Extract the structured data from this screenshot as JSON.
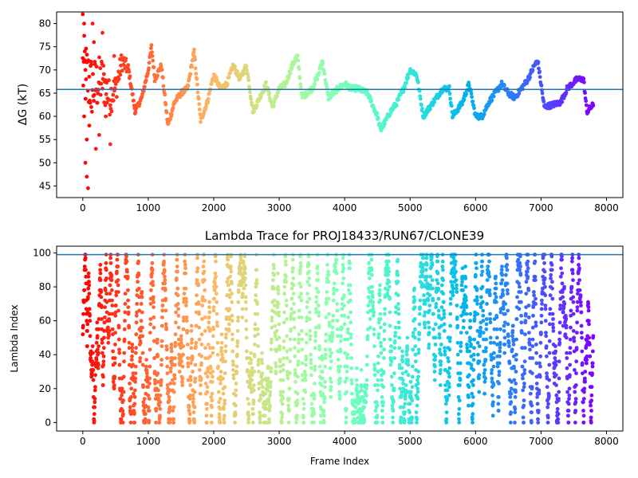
{
  "chart_data": [
    {
      "type": "scatter",
      "title": "",
      "xlabel": "",
      "ylabel": "ΔG (kT)",
      "xlim": [
        -400,
        8250
      ],
      "ylim": [
        42.5,
        82.5
      ],
      "xticks": [
        0,
        1000,
        2000,
        3000,
        4000,
        5000,
        6000,
        7000,
        8000
      ],
      "yticks": [
        45,
        50,
        55,
        60,
        65,
        70,
        75,
        80
      ],
      "color_by": "frame index (rainbow colormap, red at frame 0 to violet at frame ~7800)",
      "hline": {
        "y": 65.8,
        "color": "#1f77b4"
      },
      "trend_points": [
        [
          0,
          70
        ],
        [
          150,
          66
        ],
        [
          300,
          68
        ],
        [
          400,
          64
        ],
        [
          500,
          66
        ],
        [
          600,
          72
        ],
        [
          700,
          70
        ],
        [
          800,
          61
        ],
        [
          900,
          64
        ],
        [
          1000,
          70
        ],
        [
          1050,
          75
        ],
        [
          1100,
          68
        ],
        [
          1200,
          71
        ],
        [
          1300,
          58
        ],
        [
          1400,
          63
        ],
        [
          1500,
          65
        ],
        [
          1600,
          66
        ],
        [
          1700,
          74
        ],
        [
          1800,
          59
        ],
        [
          1900,
          63
        ],
        [
          2000,
          69
        ],
        [
          2100,
          66
        ],
        [
          2200,
          67
        ],
        [
          2300,
          71
        ],
        [
          2400,
          68
        ],
        [
          2500,
          71
        ],
        [
          2600,
          61
        ],
        [
          2700,
          64
        ],
        [
          2800,
          67
        ],
        [
          2900,
          62
        ],
        [
          3000,
          66
        ],
        [
          3100,
          67
        ],
        [
          3200,
          71
        ],
        [
          3280,
          73
        ],
        [
          3350,
          64
        ],
        [
          3500,
          66
        ],
        [
          3600,
          69
        ],
        [
          3660,
          72
        ],
        [
          3750,
          64
        ],
        [
          3900,
          66
        ],
        [
          4000,
          67
        ],
        [
          4100,
          66
        ],
        [
          4200,
          66
        ],
        [
          4350,
          65
        ],
        [
          4500,
          60
        ],
        [
          4550,
          57
        ],
        [
          4700,
          61
        ],
        [
          4800,
          63
        ],
        [
          4900,
          66
        ],
        [
          5000,
          70
        ],
        [
          5100,
          69
        ],
        [
          5200,
          60
        ],
        [
          5400,
          64
        ],
        [
          5500,
          66
        ],
        [
          5600,
          66
        ],
        [
          5650,
          60
        ],
        [
          5800,
          63
        ],
        [
          5900,
          67
        ],
        [
          6000,
          60
        ],
        [
          6100,
          60
        ],
        [
          6200,
          63
        ],
        [
          6400,
          67
        ],
        [
          6500,
          65
        ],
        [
          6600,
          64
        ],
        [
          6700,
          66
        ],
        [
          6800,
          68
        ],
        [
          6900,
          71
        ],
        [
          6950,
          72
        ],
        [
          7050,
          62
        ],
        [
          7300,
          63
        ],
        [
          7400,
          66
        ],
        [
          7550,
          68
        ],
        [
          7650,
          68
        ],
        [
          7700,
          61
        ],
        [
          7800,
          62.5
        ]
      ],
      "spread_points": [
        [
          0,
          82
        ],
        [
          20,
          80
        ],
        [
          30,
          74
        ],
        [
          40,
          70
        ],
        [
          50,
          68
        ],
        [
          20,
          60
        ],
        [
          40,
          50
        ],
        [
          60,
          47
        ],
        [
          80,
          44.5
        ],
        [
          60,
          55
        ],
        [
          100,
          58
        ],
        [
          130,
          62
        ],
        [
          150,
          80
        ],
        [
          170,
          76
        ],
        [
          200,
          53
        ],
        [
          250,
          56
        ],
        [
          300,
          78
        ],
        [
          350,
          60
        ],
        [
          420,
          54
        ],
        [
          480,
          73
        ]
      ]
    },
    {
      "type": "scatter",
      "title": "Lambda Trace for PROJ18433/RUN67/CLONE39",
      "xlabel": "Frame Index",
      "ylabel": "Lambda Index",
      "xlim": [
        -400,
        8250
      ],
      "ylim": [
        -5,
        104
      ],
      "xticks": [
        0,
        1000,
        2000,
        3000,
        4000,
        5000,
        6000,
        7000,
        8000
      ],
      "yticks": [
        0,
        20,
        40,
        60,
        80,
        100
      ],
      "color_by": "frame index (rainbow colormap, red at frame 0 to violet at frame ~7800)",
      "hline": {
        "y": 99,
        "color": "#1f77b4"
      },
      "lambda_range": [
        0,
        99
      ]
    }
  ],
  "axes": {
    "top": {
      "ylabel": "ΔG (kT)",
      "xticks": [
        "0",
        "1000",
        "2000",
        "3000",
        "4000",
        "5000",
        "6000",
        "7000",
        "8000"
      ],
      "yticks": [
        "45",
        "50",
        "55",
        "60",
        "65",
        "70",
        "75",
        "80"
      ]
    },
    "bottom": {
      "title": "Lambda Trace for PROJ18433/RUN67/CLONE39",
      "xlabel": "Frame Index",
      "ylabel": "Lambda Index",
      "xticks": [
        "0",
        "1000",
        "2000",
        "3000",
        "4000",
        "5000",
        "6000",
        "7000",
        "8000"
      ],
      "yticks": [
        "0",
        "20",
        "40",
        "60",
        "80",
        "100"
      ]
    }
  },
  "colors": {
    "hline": "#1f77b4",
    "axis": "#000000"
  }
}
